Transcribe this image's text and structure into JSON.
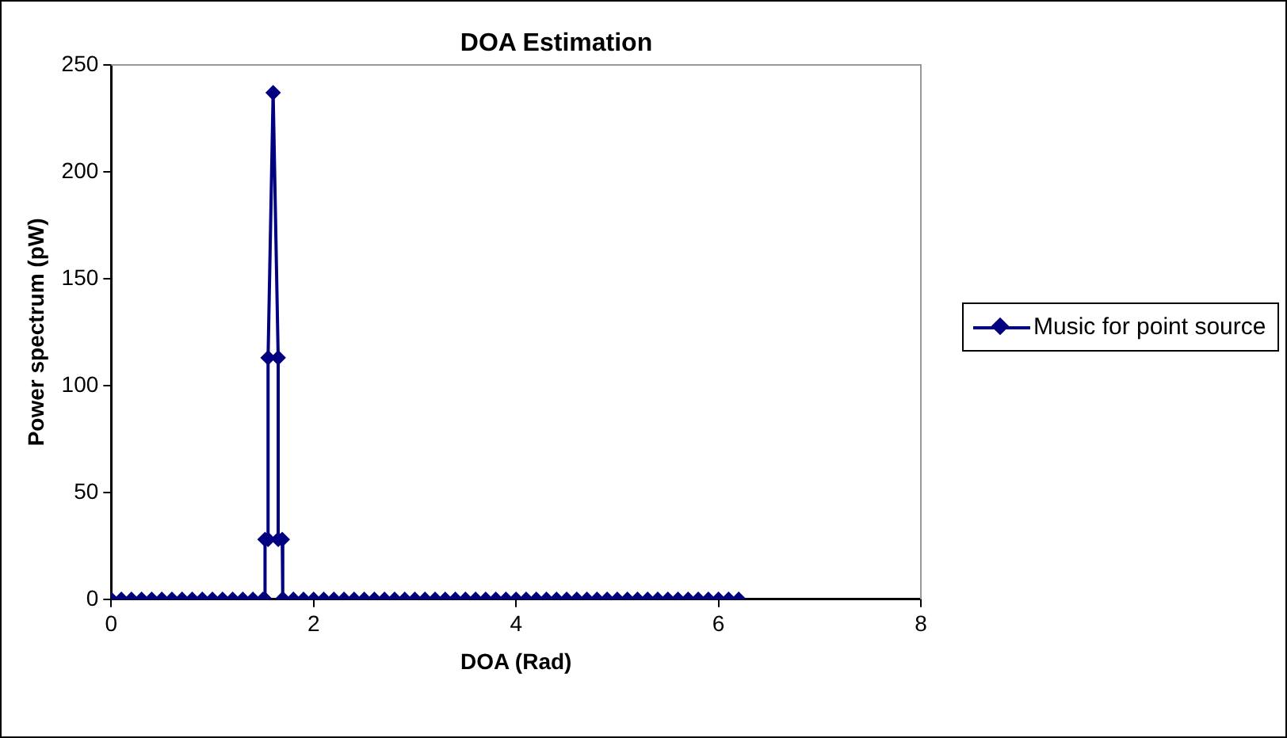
{
  "chart_data": {
    "type": "line",
    "title": "DOA Estimation",
    "xlabel": "DOA (Rad)",
    "ylabel": "Power spectrum (pW)",
    "x": [
      0,
      0.1,
      0.2,
      0.3,
      0.4,
      0.5,
      0.6,
      0.7,
      0.8,
      0.9,
      1,
      1.1,
      1.2,
      1.3,
      1.4,
      1.5,
      1.52,
      1.52,
      1.55,
      1.55,
      1.6,
      1.65,
      1.65,
      1.69,
      1.69,
      1.7,
      1.8,
      1.9,
      2,
      2.1,
      2.2,
      2.3,
      2.4,
      2.5,
      2.6,
      2.7,
      2.8,
      2.9,
      3,
      3.1,
      3.2,
      3.3,
      3.4,
      3.5,
      3.6,
      3.7,
      3.8,
      3.9,
      4,
      4.1,
      4.2,
      4.3,
      4.4,
      4.5,
      4.6,
      4.7,
      4.8,
      4.9,
      5,
      5.1,
      5.2,
      5.3,
      5.4,
      5.5,
      5.6,
      5.7,
      5.8,
      5.9,
      6,
      6.1,
      6.2
    ],
    "series": [
      {
        "name": "Music for point source",
        "color": "#000080",
        "values": [
          0,
          0,
          0,
          0,
          0,
          0,
          0,
          0,
          0,
          0,
          0,
          0,
          0,
          0,
          0,
          0,
          0,
          28,
          28,
          113,
          237,
          113,
          28,
          28,
          0,
          0,
          0,
          0,
          0,
          0,
          0,
          0,
          0,
          0,
          0,
          0,
          0,
          0,
          0,
          0,
          0,
          0,
          0,
          0,
          0,
          0,
          0,
          0,
          0,
          0,
          0,
          0,
          0,
          0,
          0,
          0,
          0,
          0,
          0,
          0,
          0,
          0,
          0,
          0,
          0,
          0,
          0,
          0,
          0,
          0,
          0
        ]
      }
    ],
    "xlim": [
      0,
      8
    ],
    "xticks": [
      0,
      2,
      4,
      6,
      8
    ],
    "ylim": [
      0,
      250
    ],
    "yticks": [
      0,
      50,
      100,
      150,
      200,
      250
    ],
    "grid": false,
    "legend": "right",
    "marker": "diamond",
    "line_style": "solid"
  }
}
